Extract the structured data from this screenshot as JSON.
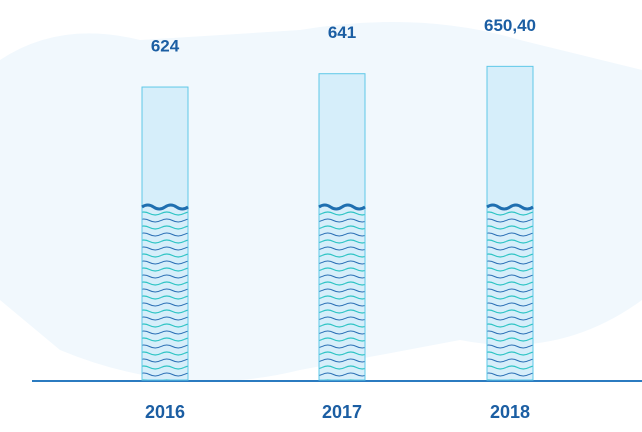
{
  "chart_data": {
    "type": "bar",
    "categories": [
      "2016",
      "2017",
      "2018"
    ],
    "values": [
      624,
      641,
      650.4
    ],
    "value_labels": [
      "624",
      "641",
      "650,40"
    ],
    "color": "#d6eefa",
    "ylim": [
      250,
      670
    ]
  }
}
